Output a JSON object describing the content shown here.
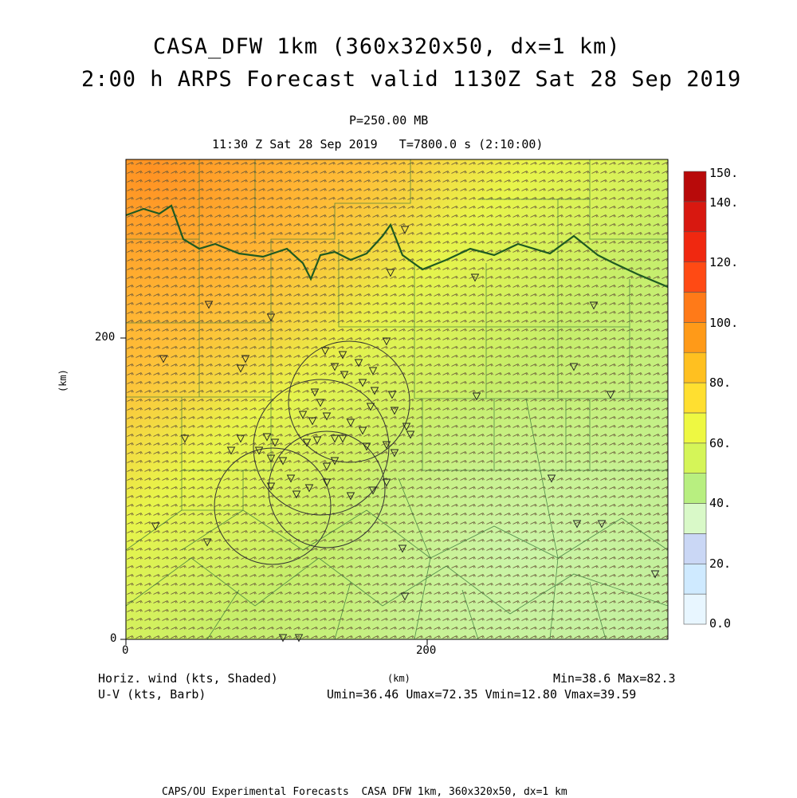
{
  "header": {
    "title_line1": "CASA_DFW 1km (360x320x50, dx=1 km)",
    "title_line2": "2:00 h ARPS Forecast valid 1130Z Sat 28 Sep 2019",
    "level": "P=250.00 MB",
    "time_line": "11:30 Z Sat 28 Sep 2019   T=7800.0 s (2:10:00)"
  },
  "axes": {
    "x_ticks": [
      "0",
      "200"
    ],
    "y_ticks": [
      "0",
      "200"
    ],
    "x_label": "(km)",
    "y_label": "(km)",
    "x_range_km": [
      0,
      360
    ],
    "y_range_km": [
      0,
      320
    ]
  },
  "colorbar": {
    "labels": [
      "0.0",
      "20.",
      "40.",
      "60.",
      "80.",
      "100.",
      "120.",
      "140.",
      "150."
    ],
    "colors": [
      "#e8f6ff",
      "#cfeaff",
      "#cad7f5",
      "#d9f9c8",
      "#b8ef80",
      "#d5f558",
      "#eef842",
      "#ffdf30",
      "#ffc020",
      "#ff9a18",
      "#ff7a18",
      "#ff4a14",
      "#f02810",
      "#d81810",
      "#b80a0a"
    ]
  },
  "legend": {
    "shaded_label": "Horiz. wind (kts, Shaded)",
    "barb_label": "U-V (kts, Barb)",
    "minmax": "Min=38.6 Max=82.3",
    "uv_stats": "Umin=36.46 Umax=72.35 Vmin=12.80 Vmax=39.59"
  },
  "footer": {
    "credit": "CAPS/OU Experimental Forecasts  CASA DFW 1km, 360x320x50, dx=1 km"
  }
}
